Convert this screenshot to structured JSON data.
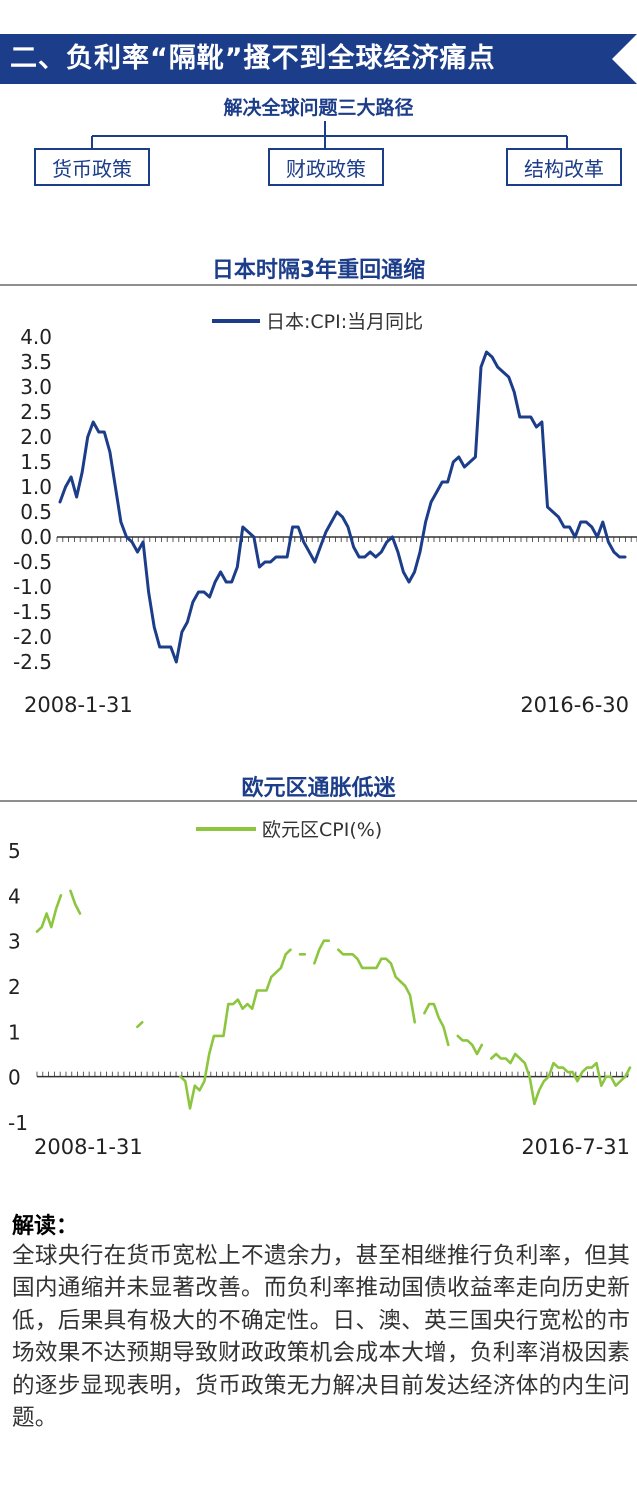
{
  "header": {
    "title": "二、负利率“隔靴”搔不到全球经济痛点",
    "color": "#1c3d8a"
  },
  "paths": {
    "title": "解决全球问题三大路径",
    "items": [
      "货币政策",
      "财政政策",
      "结构改革"
    ]
  },
  "chart_data": [
    {
      "type": "line",
      "title": "日本时隔3年重回通缩",
      "series": [
        {
          "name": "日本:CPI:当月同比",
          "color": "#1c3d8a",
          "values": [
            0.7,
            1.0,
            1.2,
            0.8,
            1.3,
            2.0,
            2.3,
            2.1,
            2.1,
            1.7,
            1.0,
            0.3,
            0.0,
            -0.1,
            -0.3,
            -0.1,
            -1.1,
            -1.8,
            -2.2,
            -2.2,
            -2.2,
            -2.5,
            -1.9,
            -1.7,
            -1.3,
            -1.1,
            -1.1,
            -1.2,
            -0.9,
            -0.7,
            -0.9,
            -0.9,
            -0.6,
            0.2,
            0.1,
            0.0,
            -0.6,
            -0.5,
            -0.5,
            -0.4,
            -0.4,
            -0.4,
            0.2,
            0.2,
            -0.1,
            -0.3,
            -0.5,
            -0.2,
            0.1,
            0.3,
            0.5,
            0.4,
            0.2,
            -0.2,
            -0.4,
            -0.4,
            -0.3,
            -0.4,
            -0.3,
            -0.1,
            0.0,
            -0.3,
            -0.7,
            -0.9,
            -0.7,
            -0.3,
            0.3,
            0.7,
            0.9,
            1.1,
            1.1,
            1.5,
            1.6,
            1.4,
            1.5,
            1.6,
            3.4,
            3.7,
            3.6,
            3.4,
            3.3,
            3.2,
            2.9,
            2.4,
            2.4,
            2.4,
            2.2,
            2.3,
            0.6,
            0.5,
            0.4,
            0.2,
            0.2,
            0.0,
            0.3,
            0.3,
            0.2,
            0.0,
            0.3,
            -0.1,
            -0.3,
            -0.4,
            -0.4
          ]
        }
      ],
      "x_start_label": "2008-1-31",
      "x_end_label": "2016-6-30",
      "ylim": [
        -2.5,
        4.0
      ],
      "yticks": [
        "4.0",
        "3.5",
        "3.0",
        "2.5",
        "2.0",
        "1.5",
        "1.0",
        "0.5",
        "0.0",
        "-0.5",
        "-1.0",
        "-1.5",
        "-2.0",
        "-2.5"
      ],
      "legend": "top-center",
      "grid": false
    },
    {
      "type": "line",
      "title": "欧元区通胀低迷",
      "series": [
        {
          "name": "欧元区CPI(%)",
          "color": "#8cc63f",
          "values": [
            3.2,
            3.3,
            3.6,
            3.3,
            3.7,
            4.0,
            null,
            4.1,
            3.8,
            3.6,
            null,
            null,
            null,
            null,
            null,
            null,
            null,
            null,
            null,
            null,
            null,
            1.1,
            1.2,
            null,
            null,
            null,
            null,
            null,
            null,
            null,
            0.0,
            -0.1,
            -0.7,
            -0.2,
            -0.3,
            -0.1,
            0.5,
            0.9,
            0.9,
            0.9,
            1.6,
            1.6,
            1.7,
            1.5,
            1.6,
            1.5,
            1.9,
            1.9,
            1.9,
            2.2,
            2.3,
            2.4,
            2.7,
            2.8,
            null,
            2.7,
            2.7,
            null,
            2.5,
            2.8,
            3.0,
            3.0,
            null,
            2.8,
            2.7,
            2.7,
            2.7,
            2.6,
            2.4,
            2.4,
            2.4,
            2.4,
            2.6,
            2.6,
            2.5,
            2.2,
            2.1,
            2.0,
            1.8,
            1.2,
            null,
            1.4,
            1.6,
            1.6,
            1.3,
            1.1,
            0.7,
            null,
            0.9,
            0.8,
            0.8,
            0.7,
            0.5,
            0.7,
            null,
            0.4,
            0.5,
            0.4,
            0.4,
            0.3,
            0.5,
            0.4,
            0.3,
            0.0,
            -0.6,
            -0.3,
            -0.1,
            0.0,
            0.3,
            0.2,
            0.2,
            0.1,
            0.1,
            -0.1,
            0.1,
            0.2,
            0.2,
            0.3,
            -0.2,
            0.0,
            0.0,
            -0.2,
            -0.1,
            0.0,
            0.2
          ]
        }
      ],
      "x_start_label": "2008-1-31",
      "x_end_label": "2016-7-31",
      "ylim": [
        -1,
        5
      ],
      "yticks": [
        "5",
        "4",
        "3",
        "2",
        "1",
        "0",
        "-1"
      ],
      "legend": "top-center",
      "grid": false
    }
  ],
  "commentary": {
    "heading": "解读：",
    "body": "全球央行在货币宽松上不遗余力，甚至相继推行负利率，但其国内通缩并未显著改善。而负利率推动国债收益率走向历史新低，后果具有极大的不确定性。日、澳、英三国央行宽松的市场效果不达预期导致财政政策机会成本大增，负利率消极因素的逐步显现表明，货币政策无力解决目前发达经济体的内生问题。"
  }
}
